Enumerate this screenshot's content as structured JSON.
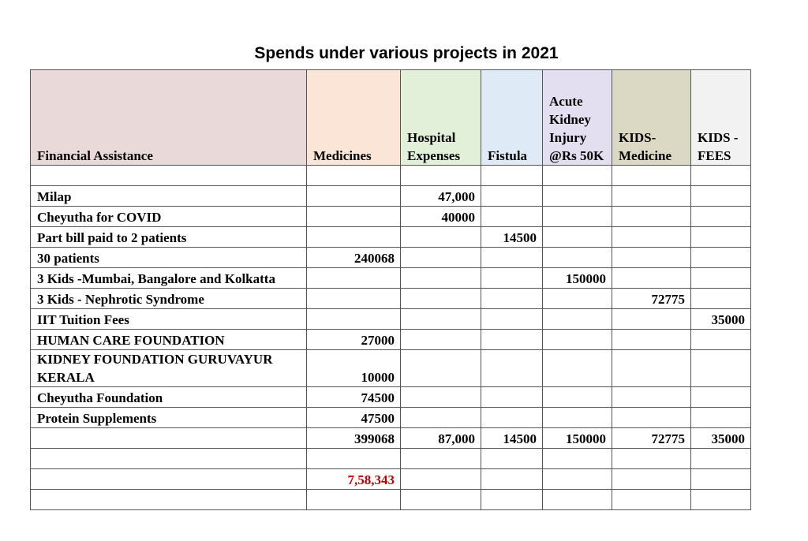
{
  "title": "Spends under various projects in 2021",
  "table": {
    "columns": [
      "Financial Assistance",
      "Medicines",
      "Hospital Expenses",
      "Fistula",
      "Acute Kidney Injury @Rs 50K",
      "KIDS-Medicine",
      "KIDS - FEES"
    ],
    "header_colors": [
      "#ead9d9",
      "#fbe5d6",
      "#e2efd9",
      "#deebf6",
      "#e4dff0",
      "#dbd9c3",
      "#f2f2f2"
    ],
    "rows": [
      null,
      {
        "label": "Milap",
        "cells": {
          "2": "47,000"
        }
      },
      {
        "label": "Cheyutha for COVID",
        "cells": {
          "2": 40000
        }
      },
      {
        "label": "Part bill paid to 2 patients",
        "cells": {
          "3": 14500
        }
      },
      {
        "label": "30 patients",
        "cells": {
          "1": 240068
        }
      },
      {
        "label": "3 Kids -Mumbai, Bangalore and Kolkatta",
        "cells": {
          "4": 150000
        }
      },
      {
        "label": "3 Kids - Nephrotic Syndrome",
        "cells": {
          "5": 72775
        }
      },
      {
        "label": "IIT Tuition Fees",
        "cells": {
          "6": 35000
        }
      },
      {
        "label": "HUMAN CARE FOUNDATION",
        "cells": {
          "1": 27000
        }
      },
      {
        "label": "KIDNEY FOUNDATION GURUVAYUR KERALA",
        "cells": {
          "1": 10000
        }
      },
      {
        "label": "Cheyutha Foundation",
        "cells": {
          "1": 74500
        }
      },
      {
        "label": "Protein Supplements",
        "cells": {
          "1": 47500
        }
      },
      {
        "cells": {
          "1": 399068,
          "2": "87,000",
          "3": 14500,
          "4": 150000,
          "5": 72775,
          "6": 35000
        }
      },
      null,
      {
        "cells": {
          "1": "7,58,343"
        },
        "color": "#c00000"
      },
      null
    ]
  }
}
